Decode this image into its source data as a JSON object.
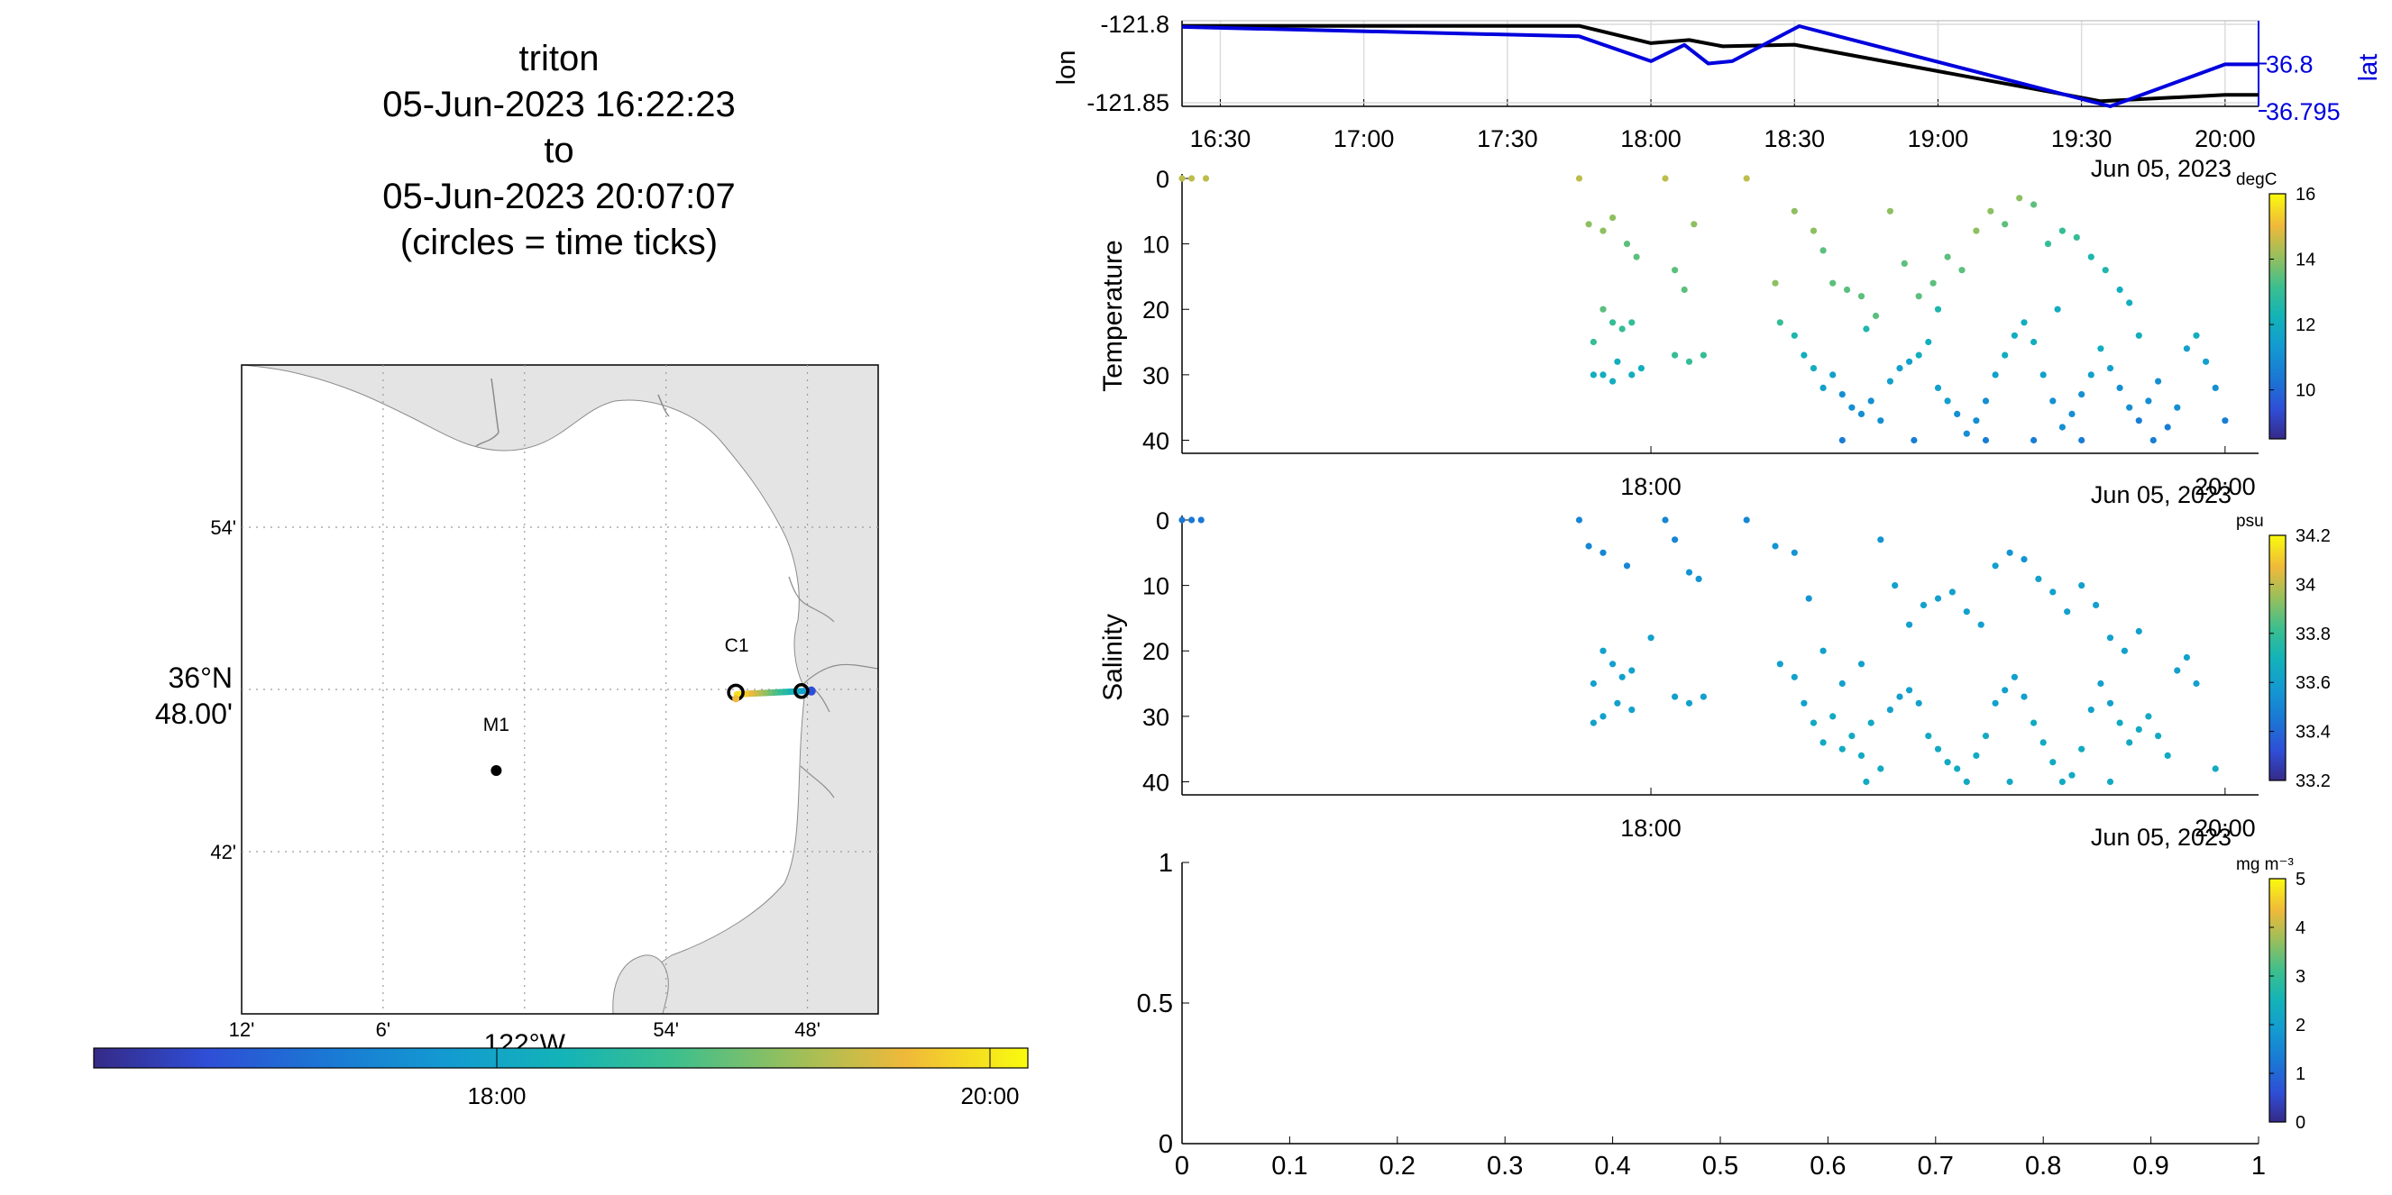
{
  "title": {
    "lines": [
      "triton",
      "05-Jun-2023 16:22:23",
      "to",
      "05-Jun-2023 20:07:07",
      "(circles = time ticks)"
    ]
  },
  "map": {
    "lat_ticks": [
      {
        "value": 36.9,
        "label": "54'"
      },
      {
        "value": 36.8,
        "label_top": "36°N",
        "label_bottom": "48.00'"
      },
      {
        "value": 36.7,
        "label": "42'"
      }
    ],
    "lon_ticks": [
      {
        "value": -122.2,
        "label": "12'"
      },
      {
        "value": -122.1,
        "label": "6'"
      },
      {
        "value": -122.0,
        "label": "122°W"
      },
      {
        "value": -121.9,
        "label": "54'"
      },
      {
        "value": -121.8,
        "label": "48'"
      }
    ],
    "lon_range": [
      -122.2,
      -121.75
    ],
    "lat_range": [
      36.6,
      37.0
    ],
    "stations": [
      {
        "name": "C1",
        "lon": -121.85,
        "lat": 36.8
      },
      {
        "name": "M1",
        "lon": -122.02,
        "lat": 36.75
      }
    ],
    "track": [
      {
        "lon": -121.803,
        "lat": 36.799
      },
      {
        "lon": -121.85,
        "lat": 36.797
      }
    ],
    "time_colorbar": {
      "ticks": [
        "18:00",
        "20:00"
      ]
    }
  },
  "chart_data": [
    {
      "type": "line",
      "ylabel": "lon",
      "ylabel_right": "lat",
      "x_ticks": [
        "16:30",
        "17:00",
        "17:30",
        "18:00",
        "18:30",
        "19:00",
        "19:30",
        "20:00"
      ],
      "x_date_label": "Jun 05, 2023",
      "xlim": [
        "16:22",
        "20:07"
      ],
      "y_ticks_left": [
        "-121.8",
        "-121.85"
      ],
      "y_ticks_right": [
        "36.8",
        "36.795"
      ],
      "series": [
        {
          "name": "lon",
          "color": "#000000",
          "points": [
            [
              "16:22",
              -121.801
            ],
            [
              "17:45",
              -121.801
            ],
            [
              "18:00",
              -121.812
            ],
            [
              "18:08",
              -121.81
            ],
            [
              "18:15",
              -121.814
            ],
            [
              "18:30",
              -121.813
            ],
            [
              "19:34",
              -121.849
            ],
            [
              "20:00",
              -121.845
            ],
            [
              "20:07",
              -121.845
            ]
          ]
        },
        {
          "name": "lat",
          "color": "#0000dd",
          "points": [
            [
              "16:22",
              36.8047
            ],
            [
              "17:45",
              36.8035
            ],
            [
              "18:00",
              36.8003
            ],
            [
              "18:07",
              36.8024
            ],
            [
              "18:12",
              36.8
            ],
            [
              "18:17",
              36.8003
            ],
            [
              "18:31",
              36.8048
            ],
            [
              "19:36",
              36.7945
            ],
            [
              "20:00",
              36.7999
            ],
            [
              "20:07",
              36.7999
            ]
          ]
        }
      ]
    },
    {
      "type": "scatter",
      "ylabel": "Temperature",
      "colorbar_label": "degC",
      "colorbar_ticks": [
        "16",
        "14",
        "12",
        "10"
      ],
      "clim": [
        8.5,
        16
      ],
      "ylim": [
        0,
        42
      ],
      "y_ticks": [
        "0",
        "10",
        "20",
        "30",
        "40"
      ],
      "x_ticks": [
        "18:00",
        "20:00"
      ],
      "x_date_label": "Jun 05, 2023",
      "points": [
        [
          "16:22",
          0,
          14.5
        ],
        [
          "16:24",
          0,
          14.5
        ],
        [
          "16:27",
          0,
          14.5
        ],
        [
          "17:45",
          0,
          14.5
        ],
        [
          "18:03",
          0,
          14.5
        ],
        [
          "18:20",
          0,
          14.5
        ],
        [
          "17:47",
          7,
          14
        ],
        [
          "17:50",
          8,
          14
        ],
        [
          "17:52",
          6,
          14
        ],
        [
          "17:55",
          10,
          13.5
        ],
        [
          "17:57",
          12,
          13.5
        ],
        [
          "17:50",
          20,
          13.5
        ],
        [
          "17:52",
          22,
          13
        ],
        [
          "17:54",
          23,
          13
        ],
        [
          "17:56",
          22,
          13
        ],
        [
          "17:48",
          25,
          13
        ],
        [
          "17:50",
          30,
          12
        ],
        [
          "17:53",
          28,
          12
        ],
        [
          "17:56",
          30,
          12
        ],
        [
          "18:05",
          14,
          13.5
        ],
        [
          "18:07",
          17,
          13.5
        ],
        [
          "18:09",
          7,
          14
        ],
        [
          "18:05",
          27,
          13
        ],
        [
          "18:08",
          28,
          13
        ],
        [
          "18:11",
          27,
          13
        ],
        [
          "17:48",
          30,
          12
        ],
        [
          "17:52",
          31,
          12
        ],
        [
          "17:58",
          29,
          12
        ],
        [
          "18:26",
          16,
          14
        ],
        [
          "18:30",
          5,
          14
        ],
        [
          "18:34",
          8,
          14
        ],
        [
          "18:36",
          11,
          13.5
        ],
        [
          "18:38",
          16,
          13.5
        ],
        [
          "18:41",
          17,
          13.5
        ],
        [
          "18:44",
          18,
          13.5
        ],
        [
          "18:47",
          21,
          13.5
        ],
        [
          "18:50",
          5,
          14
        ],
        [
          "18:53",
          13,
          13.5
        ],
        [
          "18:56",
          18,
          13.5
        ],
        [
          "18:59",
          16,
          13.5
        ],
        [
          "19:02",
          12,
          13.5
        ],
        [
          "19:05",
          14,
          13.5
        ],
        [
          "19:08",
          8,
          14
        ],
        [
          "19:11",
          5,
          14
        ],
        [
          "19:14",
          7,
          13.5
        ],
        [
          "19:17",
          3,
          14
        ],
        [
          "19:20",
          4,
          13.5
        ],
        [
          "19:23",
          10,
          13
        ],
        [
          "19:26",
          8,
          13
        ],
        [
          "19:29",
          9,
          13
        ],
        [
          "19:32",
          12,
          12.5
        ],
        [
          "19:35",
          14,
          12.5
        ],
        [
          "19:38",
          17,
          12
        ],
        [
          "19:40",
          19,
          12
        ],
        [
          "19:42",
          24,
          12
        ],
        [
          "18:27",
          22,
          13
        ],
        [
          "18:30",
          24,
          12.5
        ],
        [
          "18:32",
          27,
          12
        ],
        [
          "18:34",
          29,
          12
        ],
        [
          "18:36",
          32,
          11.5
        ],
        [
          "18:38",
          30,
          11.5
        ],
        [
          "18:40",
          33,
          11
        ],
        [
          "18:42",
          35,
          11
        ],
        [
          "18:44",
          36,
          11
        ],
        [
          "18:46",
          34,
          11
        ],
        [
          "18:48",
          37,
          11
        ],
        [
          "18:50",
          31,
          11.5
        ],
        [
          "18:52",
          29,
          11.5
        ],
        [
          "18:54",
          28,
          11.5
        ],
        [
          "18:56",
          27,
          12
        ],
        [
          "18:58",
          25,
          12
        ],
        [
          "19:00",
          32,
          11.5
        ],
        [
          "19:02",
          34,
          11.5
        ],
        [
          "19:04",
          36,
          11
        ],
        [
          "19:06",
          39,
          11
        ],
        [
          "19:08",
          37,
          11
        ],
        [
          "19:10",
          34,
          11
        ],
        [
          "19:12",
          30,
          11.5
        ],
        [
          "19:14",
          27,
          12
        ],
        [
          "19:16",
          24,
          12
        ],
        [
          "19:18",
          22,
          12
        ],
        [
          "19:20",
          25,
          12
        ],
        [
          "19:22",
          30,
          11.5
        ],
        [
          "19:24",
          34,
          11
        ],
        [
          "19:26",
          38,
          11
        ],
        [
          "19:28",
          36,
          11
        ],
        [
          "19:30",
          33,
          11
        ],
        [
          "19:32",
          30,
          11.5
        ],
        [
          "19:34",
          26,
          12
        ],
        [
          "19:36",
          29,
          11.5
        ],
        [
          "19:38",
          32,
          11
        ],
        [
          "19:40",
          35,
          11
        ],
        [
          "19:42",
          37,
          10.5
        ],
        [
          "19:44",
          34,
          11
        ],
        [
          "19:46",
          31,
          11
        ],
        [
          "19:48",
          38,
          10.5
        ],
        [
          "19:50",
          35,
          11
        ],
        [
          "19:52",
          26,
          11.5
        ],
        [
          "19:54",
          24,
          12
        ],
        [
          "19:56",
          28,
          11.5
        ],
        [
          "19:58",
          32,
          11
        ],
        [
          "20:00",
          37,
          10.5
        ],
        [
          "19:25",
          20,
          12
        ],
        [
          "19:00",
          20,
          12.5
        ],
        [
          "18:45",
          23,
          12.5
        ],
        [
          "18:55",
          40,
          10.5
        ],
        [
          "19:10",
          40,
          10.5
        ],
        [
          "19:20",
          40,
          10.5
        ],
        [
          "18:40",
          40,
          10.5
        ],
        [
          "19:30",
          40,
          10.5
        ],
        [
          "19:45",
          40,
          10.5
        ]
      ]
    },
    {
      "type": "scatter",
      "ylabel": "Salinity",
      "colorbar_label": "psu",
      "colorbar_ticks": [
        "34.2",
        "34",
        "33.8",
        "33.6",
        "33.4",
        "33.2"
      ],
      "clim": [
        33.2,
        34.2
      ],
      "ylim": [
        0,
        42
      ],
      "y_ticks": [
        "0",
        "10",
        "20",
        "30",
        "40"
      ],
      "x_ticks": [
        "18:00",
        "20:00"
      ],
      "x_date_label": "Jun 05, 2023",
      "points": [
        [
          "16:22",
          0,
          33.45
        ],
        [
          "16:24",
          0,
          33.45
        ],
        [
          "16:26",
          0,
          33.45
        ],
        [
          "17:45",
          0,
          33.5
        ],
        [
          "18:03",
          0,
          33.5
        ],
        [
          "18:20",
          0,
          33.5
        ],
        [
          "17:47",
          4,
          33.5
        ],
        [
          "17:50",
          5,
          33.5
        ],
        [
          "17:55",
          7,
          33.5
        ],
        [
          "18:05",
          3,
          33.5
        ],
        [
          "18:08",
          8,
          33.55
        ],
        [
          "18:10",
          9,
          33.55
        ],
        [
          "17:50",
          20,
          33.6
        ],
        [
          "17:52",
          22,
          33.6
        ],
        [
          "17:54",
          24,
          33.6
        ],
        [
          "17:56",
          23,
          33.6
        ],
        [
          "17:48",
          25,
          33.6
        ],
        [
          "17:50",
          30,
          33.6
        ],
        [
          "17:53",
          28,
          33.6
        ],
        [
          "17:56",
          29,
          33.6
        ],
        [
          "18:05",
          27,
          33.6
        ],
        [
          "18:08",
          28,
          33.6
        ],
        [
          "18:11",
          27,
          33.6
        ],
        [
          "17:48",
          31,
          33.6
        ],
        [
          "18:00",
          18,
          33.6
        ],
        [
          "18:26",
          4,
          33.55
        ],
        [
          "18:30",
          5,
          33.55
        ],
        [
          "18:33",
          12,
          33.55
        ],
        [
          "18:36",
          20,
          33.6
        ],
        [
          "18:40",
          25,
          33.6
        ],
        [
          "18:44",
          22,
          33.6
        ],
        [
          "18:48",
          3,
          33.55
        ],
        [
          "18:51",
          10,
          33.6
        ],
        [
          "18:54",
          16,
          33.6
        ],
        [
          "18:57",
          13,
          33.6
        ],
        [
          "19:00",
          12,
          33.6
        ],
        [
          "19:03",
          11,
          33.6
        ],
        [
          "19:06",
          14,
          33.6
        ],
        [
          "19:09",
          16,
          33.6
        ],
        [
          "19:12",
          7,
          33.6
        ],
        [
          "19:15",
          5,
          33.55
        ],
        [
          "19:18",
          6,
          33.55
        ],
        [
          "19:21",
          9,
          33.6
        ],
        [
          "19:24",
          11,
          33.6
        ],
        [
          "19:27",
          14,
          33.6
        ],
        [
          "19:30",
          10,
          33.6
        ],
        [
          "19:33",
          13,
          33.6
        ],
        [
          "19:36",
          18,
          33.6
        ],
        [
          "19:39",
          20,
          33.6
        ],
        [
          "19:42",
          17,
          33.6
        ],
        [
          "18:27",
          22,
          33.6
        ],
        [
          "18:30",
          24,
          33.6
        ],
        [
          "18:32",
          28,
          33.6
        ],
        [
          "18:34",
          31,
          33.65
        ],
        [
          "18:36",
          34,
          33.65
        ],
        [
          "18:38",
          30,
          33.65
        ],
        [
          "18:40",
          35,
          33.65
        ],
        [
          "18:42",
          33,
          33.65
        ],
        [
          "18:44",
          36,
          33.65
        ],
        [
          "18:46",
          31,
          33.65
        ],
        [
          "18:48",
          38,
          33.65
        ],
        [
          "18:50",
          29,
          33.6
        ],
        [
          "18:52",
          27,
          33.6
        ],
        [
          "18:54",
          26,
          33.6
        ],
        [
          "18:56",
          28,
          33.6
        ],
        [
          "18:58",
          33,
          33.65
        ],
        [
          "19:00",
          35,
          33.65
        ],
        [
          "19:02",
          37,
          33.65
        ],
        [
          "19:04",
          38,
          33.65
        ],
        [
          "19:06",
          40,
          33.65
        ],
        [
          "19:08",
          36,
          33.65
        ],
        [
          "19:10",
          33,
          33.65
        ],
        [
          "19:12",
          28,
          33.6
        ],
        [
          "19:14",
          26,
          33.6
        ],
        [
          "19:16",
          24,
          33.6
        ],
        [
          "19:18",
          27,
          33.6
        ],
        [
          "19:20",
          31,
          33.65
        ],
        [
          "19:22",
          34,
          33.65
        ],
        [
          "19:24",
          37,
          33.65
        ],
        [
          "19:26",
          40,
          33.65
        ],
        [
          "19:28",
          39,
          33.65
        ],
        [
          "19:30",
          35,
          33.65
        ],
        [
          "19:32",
          29,
          33.6
        ],
        [
          "19:34",
          25,
          33.6
        ],
        [
          "19:36",
          28,
          33.6
        ],
        [
          "19:38",
          31,
          33.65
        ],
        [
          "19:40",
          34,
          33.65
        ],
        [
          "19:42",
          32,
          33.65
        ],
        [
          "19:44",
          30,
          33.65
        ],
        [
          "19:46",
          33,
          33.65
        ],
        [
          "19:48",
          36,
          33.65
        ],
        [
          "19:50",
          23,
          33.6
        ],
        [
          "19:52",
          21,
          33.6
        ],
        [
          "19:54",
          25,
          33.6
        ],
        [
          "19:58",
          38,
          33.65
        ],
        [
          "18:45",
          40,
          33.65
        ],
        [
          "19:15",
          40,
          33.65
        ],
        [
          "19:36",
          40,
          33.65
        ]
      ]
    },
    {
      "type": "scatter",
      "colorbar_label": "mg m⁻³",
      "colorbar_ticks": [
        "5",
        "4",
        "3",
        "2",
        "1",
        "0"
      ],
      "clim": [
        0,
        5
      ],
      "xlim": [
        0,
        1
      ],
      "ylim": [
        0,
        1
      ],
      "x_ticks": [
        "0",
        "0.1",
        "0.2",
        "0.3",
        "0.4",
        "0.5",
        "0.6",
        "0.7",
        "0.8",
        "0.9",
        "1"
      ],
      "y_ticks": [
        "0",
        "0.5",
        "1"
      ],
      "points": []
    }
  ]
}
